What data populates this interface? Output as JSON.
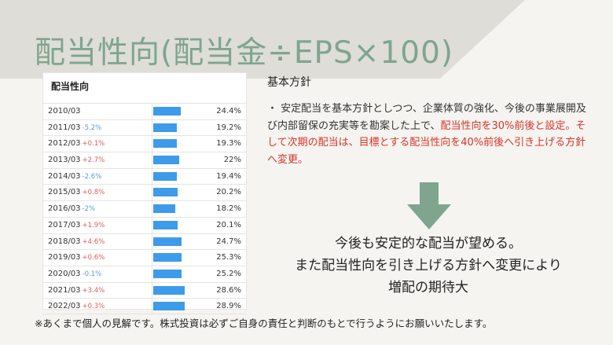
{
  "title": "配当性向(配当金÷EPS×100)",
  "table": {
    "title": "配当性向",
    "rows": [
      {
        "year": "2010/03",
        "change": "",
        "value": "24.4%",
        "ratio": 24.4
      },
      {
        "year": "2011/03",
        "change": "-5.2%",
        "value": "19.2%",
        "ratio": 19.2
      },
      {
        "year": "2012/03",
        "change": "+0.1%",
        "value": "19.3%",
        "ratio": 19.3
      },
      {
        "year": "2013/03",
        "change": "+2.7%",
        "value": "22%",
        "ratio": 22.0
      },
      {
        "year": "2014/03",
        "change": "-2.6%",
        "value": "19.4%",
        "ratio": 19.4
      },
      {
        "year": "2015/03",
        "change": "+0.8%",
        "value": "20.2%",
        "ratio": 20.2
      },
      {
        "year": "2016/03",
        "change": "-2%",
        "value": "18.2%",
        "ratio": 18.2
      },
      {
        "year": "2017/03",
        "change": "+1.9%",
        "value": "20.1%",
        "ratio": 20.1
      },
      {
        "year": "2018/03",
        "change": "+4.6%",
        "value": "24.7%",
        "ratio": 24.7
      },
      {
        "year": "2019/03",
        "change": "+0.6%",
        "value": "25.3%",
        "ratio": 25.3
      },
      {
        "year": "2020/03",
        "change": "-0.1%",
        "value": "25.2%",
        "ratio": 25.2
      },
      {
        "year": "2021/03",
        "change": "+3.4%",
        "value": "28.6%",
        "ratio": 28.6
      },
      {
        "year": "2022/03",
        "change": "+0.3%",
        "value": "28.9%",
        "ratio": 28.9
      }
    ]
  },
  "policy": {
    "heading": "基本方針",
    "text_normal": "・ 安定配当を基本方針としつつ、企業体質の強化、今後の事業展開及び内部留保の充実等を勘案した上で、",
    "text_red": "配当性向を30%前後と設定。そして次期の配当は、目標とする配当性向を40%前後へ引き上げる方針へ変更。"
  },
  "conclusion": {
    "line1": "今後も安定的な配当が望める。",
    "line2": "また配当性向を引き上げる方針へ変更により",
    "line3": "増配の期待大"
  },
  "disclaimer": "※あくまで個人の見解です。株式投資は必ずご自身の責任と判断のもとで行うようにお願いいたします。",
  "colors": {
    "title": "#7fa58e",
    "bar": "#3d9be9",
    "arrow": "#7fa58e",
    "highlight_red": "#d9342b",
    "change_positive": "#e05a5a",
    "change_negative": "#5b9bd5"
  }
}
